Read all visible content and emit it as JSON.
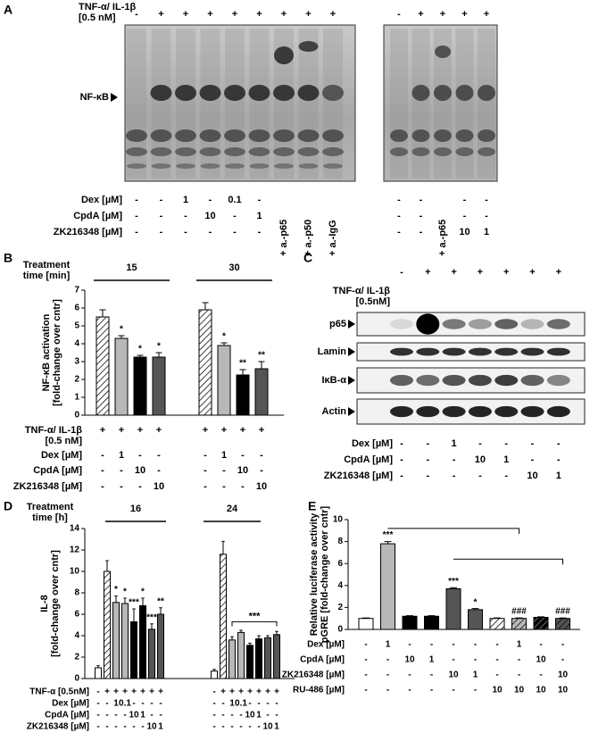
{
  "panel_labels": [
    "A",
    "B",
    "C",
    "D",
    "E"
  ],
  "gel": {
    "treatment_label": [
      "TNF-α/ IL-1β",
      "[0.5 nM]"
    ],
    "treatment_left": [
      "-",
      "+",
      "+",
      "+",
      "+",
      "+",
      "+",
      "+",
      "+"
    ],
    "treatment_right": [
      "-",
      "+",
      "+",
      "+",
      "+"
    ],
    "band_label": "NF-κB",
    "rows": [
      {
        "label": "Dex [µM]",
        "left": [
          "-",
          "-",
          "1",
          "-",
          "0.1",
          "-",
          null,
          null,
          null
        ],
        "right": [
          "-",
          "-",
          null,
          "-",
          "-"
        ]
      },
      {
        "label": "CpdA [µM]",
        "left": [
          "-",
          "-",
          "-",
          "10",
          "-",
          "1",
          null,
          null,
          null
        ],
        "right": [
          "-",
          "-",
          null,
          "-",
          "-"
        ]
      },
      {
        "label": "ZK216348 [µM]",
        "left": [
          "-",
          "-",
          "-",
          "-",
          "-",
          "-",
          "+ a.-p65",
          "+ a.-p50",
          "+ a.-IgG"
        ],
        "right": [
          "-",
          "-",
          "+ a.-p65",
          "10",
          "1"
        ]
      }
    ]
  },
  "blot": {
    "treatment_label": [
      "TNF-α/ IL-1β",
      "[0.5nM]"
    ],
    "treatment": [
      "-",
      "+",
      "+",
      "+",
      "+",
      "+",
      "+"
    ],
    "bands": [
      "p65",
      "Lamin",
      "IκB-α",
      "Actin"
    ],
    "rows": [
      {
        "label": "Dex [µM]",
        "lanes": [
          "-",
          "-",
          "1",
          "-",
          "-",
          "-",
          "-"
        ]
      },
      {
        "label": "CpdA [µM]",
        "lanes": [
          "-",
          "-",
          "-",
          "10",
          "1",
          "-",
          "-"
        ]
      },
      {
        "label": "ZK216348 [µM]",
        "lanes": [
          "-",
          "-",
          "-",
          "-",
          "-",
          "10",
          "1"
        ]
      }
    ]
  },
  "chart_data": [
    {
      "type": "bar",
      "group_title": [
        "Treatment",
        "time [min]"
      ],
      "groups": [
        "15",
        "30"
      ],
      "ylabel": [
        "NF-κB activation",
        "[fold-change over cntr]"
      ],
      "values": [
        5.5,
        4.3,
        3.25,
        3.25,
        5.9,
        3.9,
        2.25,
        2.6
      ],
      "errors": [
        0.4,
        0.15,
        0.1,
        0.25,
        0.4,
        0.15,
        0.3,
        0.4
      ],
      "significance": [
        null,
        "*",
        "*",
        "*",
        null,
        "*",
        "**",
        "**"
      ],
      "colors": [
        "#ffffff",
        "#b8b8b8",
        "#000000",
        "#555555",
        "#ffffff",
        "#b8b8b8",
        "#000000",
        "#555555"
      ],
      "hatched": [
        true,
        false,
        false,
        false,
        true,
        false,
        false,
        false
      ],
      "ylim": [
        0,
        7
      ],
      "yticks": [
        0,
        1,
        2,
        3,
        4,
        5,
        6,
        7
      ],
      "rows": [
        {
          "label": [
            "TNF-α/ IL-1β",
            "[0.5 nM]"
          ],
          "cells": [
            "+",
            "+",
            "+",
            "+",
            "+",
            "+",
            "+",
            "+"
          ]
        },
        {
          "label": [
            "Dex [µM]"
          ],
          "cells": [
            "-",
            "1",
            "-",
            "-",
            "-",
            "1",
            "-",
            "-"
          ]
        },
        {
          "label": [
            "CpdA [µM]"
          ],
          "cells": [
            "-",
            "-",
            "10",
            "-",
            "-",
            "-",
            "10",
            "-"
          ]
        },
        {
          "label": [
            "ZK216348 [µM]"
          ],
          "cells": [
            "-",
            "-",
            "-",
            "10",
            "-",
            "-",
            "-",
            "10"
          ]
        }
      ]
    },
    {
      "type": "bar",
      "group_title": [
        "Treatment",
        "time [h]"
      ],
      "groups": [
        "16",
        "24"
      ],
      "ylabel": [
        "IL-8",
        "[fold-change over cntr]"
      ],
      "values": [
        1.0,
        10.0,
        7.1,
        7.0,
        5.3,
        6.8,
        4.6,
        6.0,
        0.7,
        11.6,
        3.6,
        4.3,
        3.1,
        3.7,
        3.8,
        4.1
      ],
      "errors": [
        0.2,
        1.0,
        0.6,
        0.5,
        1.2,
        0.7,
        0.5,
        0.6,
        0.15,
        1.2,
        0.3,
        0.2,
        0.2,
        0.3,
        0.2,
        0.3
      ],
      "significance": [
        null,
        null,
        "*",
        "*",
        "***",
        "*",
        "***",
        "**",
        null,
        null,
        null,
        null,
        null,
        null,
        null,
        null
      ],
      "bracket_label": "***",
      "colors": [
        "#ffffff",
        "#ffffff",
        "#b8b8b8",
        "#b8b8b8",
        "#000000",
        "#000000",
        "#555555",
        "#555555",
        "#ffffff",
        "#ffffff",
        "#b8b8b8",
        "#b8b8b8",
        "#000000",
        "#000000",
        "#555555",
        "#555555"
      ],
      "hatched": [
        false,
        true,
        false,
        false,
        false,
        false,
        false,
        false,
        false,
        true,
        false,
        false,
        false,
        false,
        false,
        false
      ],
      "ylim": [
        0,
        14
      ],
      "yticks": [
        0,
        2,
        4,
        6,
        8,
        10,
        12,
        14
      ],
      "rows": [
        {
          "label": [
            "TNF-α [0.5nM]"
          ],
          "cells": [
            "-",
            "+",
            "+",
            "+",
            "+",
            "+",
            "+",
            "+",
            "-",
            "+",
            "+",
            "+",
            "+",
            "+",
            "+",
            "+"
          ]
        },
        {
          "label": [
            "Dex [µM]"
          ],
          "cells": [
            "-",
            "-",
            "1",
            "0.1",
            "-",
            "-",
            "-",
            "-",
            "-",
            "-",
            "1",
            "0.1",
            "-",
            "-",
            "-",
            "-"
          ]
        },
        {
          "label": [
            "CpdA [µM]"
          ],
          "cells": [
            "-",
            "-",
            "-",
            "-",
            "10",
            "1",
            "-",
            "-",
            "-",
            "-",
            "-",
            "-",
            "10",
            "1",
            "-",
            "-"
          ]
        },
        {
          "label": [
            "ZK216348 [µM]"
          ],
          "cells": [
            "-",
            "-",
            "-",
            "-",
            "-",
            "-",
            "10",
            "1",
            "-",
            "-",
            "-",
            "-",
            "-",
            "-",
            "10",
            "1"
          ]
        }
      ]
    },
    {
      "type": "bar",
      "ylabel": [
        "Relative luciferase activity",
        "pGRE [fold-change over cntr]"
      ],
      "values": [
        1.0,
        7.8,
        1.2,
        1.2,
        3.7,
        1.8,
        1.0,
        1.0,
        1.1,
        1.0
      ],
      "errors": [
        0.05,
        0.2,
        0.05,
        0.05,
        0.1,
        0.1,
        0.05,
        0.05,
        0.05,
        0.05
      ],
      "significance": [
        null,
        "***",
        null,
        null,
        "***",
        "*",
        null,
        "###",
        null,
        "###"
      ],
      "colors": [
        "#ffffff",
        "#b8b8b8",
        "#000000",
        "#000000",
        "#555555",
        "#555555",
        "#ffffff",
        "#b8b8b8",
        "#000000",
        "#555555"
      ],
      "hatched": [
        false,
        false,
        false,
        false,
        false,
        false,
        true,
        true,
        true,
        true
      ],
      "ylim": [
        0,
        10
      ],
      "yticks": [
        0,
        2,
        4,
        6,
        8,
        10
      ],
      "rows": [
        {
          "label": [
            "Dex [µM]"
          ],
          "cells": [
            "-",
            "1",
            "-",
            "-",
            "-",
            "-",
            "-",
            "1",
            "-",
            "-"
          ]
        },
        {
          "label": [
            "CpdA [µM]"
          ],
          "cells": [
            "-",
            "-",
            "10",
            "1",
            "-",
            "-",
            "-",
            "-",
            "10",
            "-"
          ]
        },
        {
          "label": [
            "ZK216348 [µM]"
          ],
          "cells": [
            "-",
            "-",
            "-",
            "-",
            "10",
            "1",
            "-",
            "-",
            "-",
            "10"
          ]
        },
        {
          "label": [
            "RU-486 [µM]"
          ],
          "cells": [
            "-",
            "-",
            "-",
            "-",
            "-",
            "-",
            "10",
            "10",
            "10",
            "10"
          ]
        }
      ]
    }
  ]
}
